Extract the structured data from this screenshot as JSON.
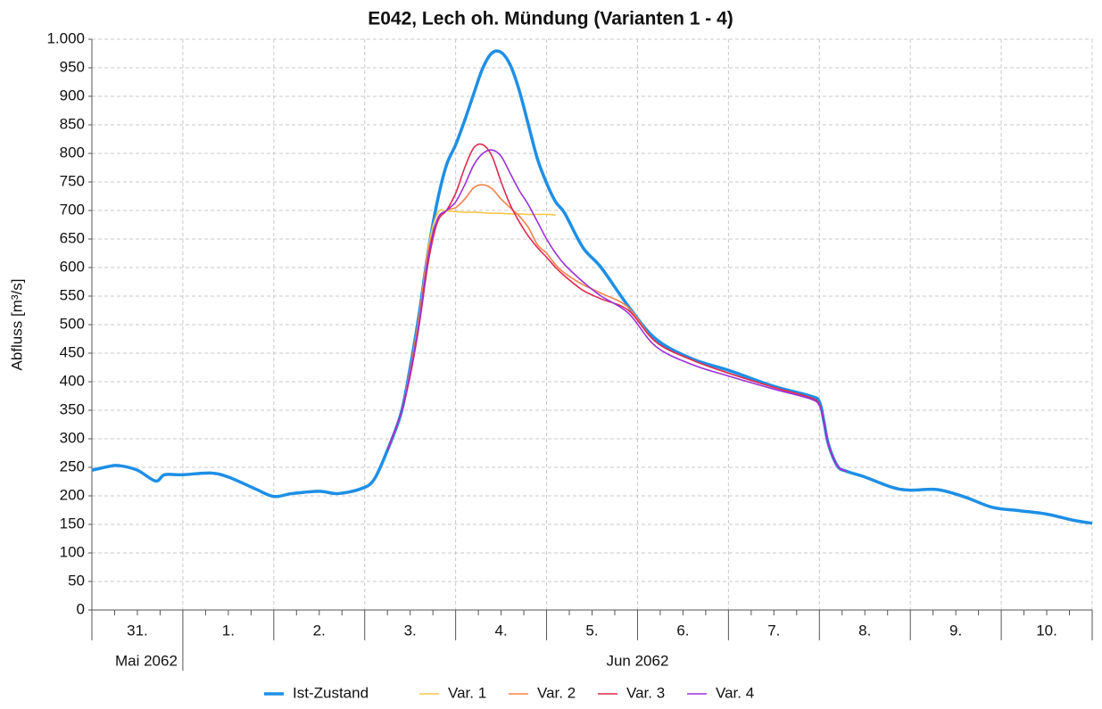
{
  "chart_data": {
    "type": "line",
    "title": "E042, Lech oh. Mündung (Varianten 1 - 4)",
    "y_label": "Abfluss [m³/s]",
    "x": [
      0,
      0.2,
      0.3,
      0.5,
      0.7,
      0.8,
      1.0,
      1.3,
      1.5,
      1.8,
      2.0,
      2.2,
      2.5,
      2.7,
      2.95,
      3.1,
      3.25,
      3.4,
      3.5,
      3.6,
      3.7,
      3.8,
      3.9,
      4.0,
      4.1,
      4.2,
      4.3,
      4.4,
      4.5,
      4.6,
      4.7,
      4.8,
      4.9,
      5.0,
      5.1,
      5.2,
      5.4,
      5.6,
      5.9,
      6.2,
      6.6,
      7.0,
      7.5,
      7.9,
      8.0,
      8.05,
      8.1,
      8.2,
      8.3,
      8.5,
      8.8,
      9.0,
      9.3,
      9.6,
      9.9,
      10.2,
      10.5,
      10.8,
      11.0
    ],
    "xlim": [
      0,
      11
    ],
    "xticks": [
      0,
      1,
      2,
      3,
      4,
      5,
      6,
      7,
      8,
      9,
      10,
      11
    ],
    "x_tick_labels": [
      "31.",
      "1.",
      "2.",
      "3.",
      "4.",
      "5.",
      "6.",
      "7.",
      "8.",
      "9.",
      "10."
    ],
    "x_period_labels": [
      "Mai 2062",
      "Jun 2062"
    ],
    "ylim": [
      0,
      1000
    ],
    "yticks": [
      0,
      50,
      100,
      150,
      200,
      250,
      300,
      350,
      400,
      450,
      500,
      550,
      600,
      650,
      700,
      750,
      800,
      850,
      900,
      950,
      {
        "value": 1000,
        "label": "1.000"
      }
    ],
    "grid": true,
    "legend": "bottom",
    "series": [
      {
        "name": "Ist-Zustand",
        "color": "#1e8fe6",
        "values": [
          245,
          252,
          253,
          245,
          226,
          237,
          237,
          240,
          233,
          212,
          199,
          204,
          208,
          204,
          212,
          228,
          280,
          345,
          425,
          520,
          630,
          717,
          780,
          815,
          858,
          905,
          950,
          976,
          977,
          955,
          910,
          850,
          790,
          748,
          715,
          695,
          635,
          600,
          532,
          475,
          440,
          420,
          392,
          375,
          365,
          330,
          290,
          252,
          243,
          233,
          215,
          210,
          211,
          198,
          180,
          174,
          168,
          157,
          152
        ]
      },
      {
        "name": "Var. 1",
        "color": "#f7c64b",
        "values": [
          null,
          null,
          null,
          null,
          null,
          null,
          null,
          null,
          null,
          null,
          null,
          null,
          null,
          null,
          null,
          null,
          280,
          345,
          420,
          515,
          635,
          695,
          699,
          698,
          697,
          697,
          696,
          695,
          695,
          694,
          694,
          693,
          693,
          693,
          692,
          null,
          null,
          null,
          null,
          null,
          null,
          null,
          null,
          null,
          null,
          null,
          null,
          null,
          null,
          null,
          null,
          null,
          null,
          null,
          null,
          null,
          null,
          null,
          null
        ]
      },
      {
        "name": "Var. 2",
        "color": "#f5824a",
        "values": [
          null,
          null,
          null,
          null,
          null,
          null,
          null,
          null,
          null,
          null,
          null,
          null,
          null,
          null,
          null,
          null,
          280,
          345,
          420,
          515,
          630,
          680,
          700,
          705,
          720,
          740,
          745,
          738,
          720,
          705,
          690,
          670,
          640,
          625,
          605,
          590,
          570,
          555,
          530,
          470,
          438,
          415,
          390,
          372,
          360,
          330,
          290,
          252,
          243,
          null,
          null,
          null,
          null,
          null,
          null,
          null,
          null,
          null,
          null
        ]
      },
      {
        "name": "Var. 3",
        "color": "#e0284f",
        "values": [
          null,
          null,
          null,
          null,
          null,
          null,
          null,
          null,
          null,
          null,
          null,
          null,
          null,
          null,
          null,
          null,
          280,
          345,
          410,
          500,
          610,
          680,
          700,
          730,
          775,
          810,
          815,
          795,
          750,
          710,
          680,
          655,
          635,
          618,
          600,
          585,
          560,
          545,
          525,
          470,
          438,
          415,
          390,
          372,
          360,
          330,
          290,
          252,
          243,
          null,
          null,
          null,
          null,
          null,
          null,
          null,
          null,
          null,
          null
        ]
      },
      {
        "name": "Var. 4",
        "color": "#9b30d9",
        "values": [
          null,
          null,
          null,
          null,
          null,
          null,
          null,
          null,
          null,
          null,
          null,
          null,
          null,
          null,
          null,
          null,
          280,
          345,
          415,
          505,
          620,
          685,
          700,
          715,
          745,
          780,
          800,
          806,
          795,
          765,
          735,
          710,
          680,
          650,
          625,
          605,
          575,
          550,
          520,
          462,
          430,
          410,
          387,
          370,
          358,
          330,
          290,
          252,
          243,
          null,
          null,
          null,
          null,
          null,
          null,
          null,
          null,
          null,
          null
        ]
      }
    ]
  }
}
